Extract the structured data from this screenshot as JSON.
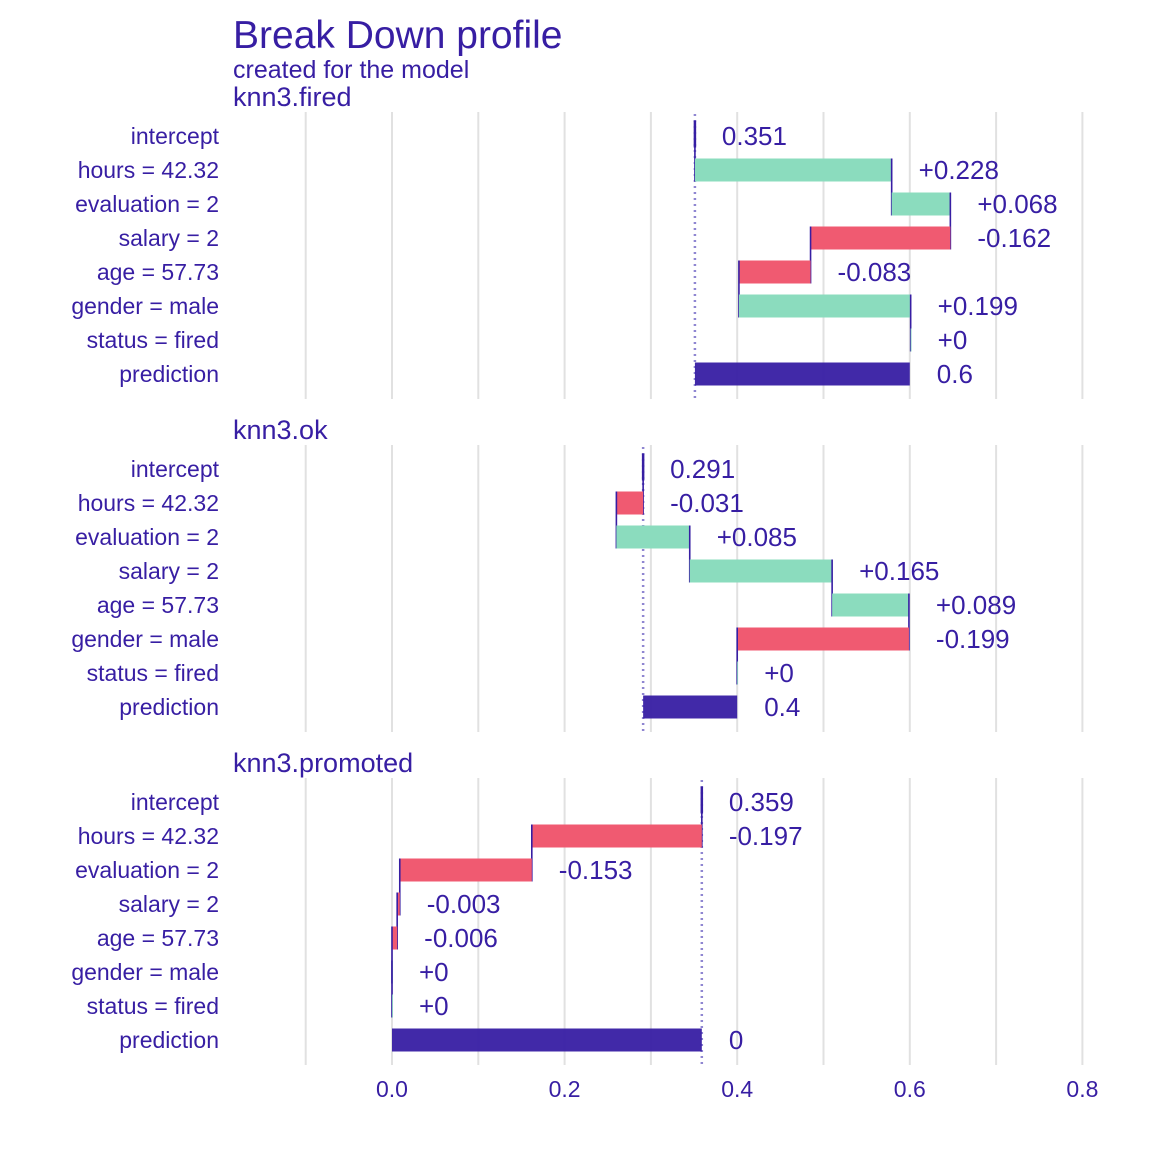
{
  "page": {
    "title": "Break Down profile",
    "subtitle": "created for the  model"
  },
  "colors": {
    "text": "#371ea3",
    "positive": "#8bdcbe",
    "negative": "#f05a71",
    "prediction": "#371ea3",
    "grid": "#e1e1e1",
    "baseline": "#8f86d1"
  },
  "chart_data": {
    "type": "bar",
    "subtype": "break-down-waterfall",
    "title": "Break Down profile",
    "subtitle": "created for the  model",
    "xlim": [
      -0.1,
      0.8
    ],
    "x_ticks": [
      0.0,
      0.2,
      0.4,
      0.6,
      0.8
    ],
    "x_tick_labels": [
      "0.0",
      "0.2",
      "0.4",
      "0.6",
      "0.8"
    ],
    "grid": true,
    "legend": "none",
    "panels": [
      {
        "label": "knn3.fired",
        "intercept": 0.351,
        "prediction": 0.6,
        "rows": [
          {
            "variable": "intercept",
            "contribution": 0.351,
            "label": "0.351",
            "kind": "intercept"
          },
          {
            "variable": "hours = 42.32",
            "contribution": 0.228,
            "label": "+0.228",
            "kind": "positive"
          },
          {
            "variable": "evaluation = 2",
            "contribution": 0.068,
            "label": "+0.068",
            "kind": "positive"
          },
          {
            "variable": "salary = 2",
            "contribution": -0.162,
            "label": "-0.162",
            "kind": "negative"
          },
          {
            "variable": "age = 57.73",
            "contribution": -0.083,
            "label": "-0.083",
            "kind": "negative"
          },
          {
            "variable": "gender = male",
            "contribution": 0.199,
            "label": "+0.199",
            "kind": "positive"
          },
          {
            "variable": "status = fired",
            "contribution": 0.0,
            "label": "+0",
            "kind": "positive"
          },
          {
            "variable": "prediction",
            "contribution": 0.6,
            "label": "0.6",
            "kind": "prediction"
          }
        ]
      },
      {
        "label": "knn3.ok",
        "intercept": 0.291,
        "prediction": 0.4,
        "rows": [
          {
            "variable": "intercept",
            "contribution": 0.291,
            "label": "0.291",
            "kind": "intercept"
          },
          {
            "variable": "hours = 42.32",
            "contribution": -0.031,
            "label": "-0.031",
            "kind": "negative"
          },
          {
            "variable": "evaluation = 2",
            "contribution": 0.085,
            "label": "+0.085",
            "kind": "positive"
          },
          {
            "variable": "salary = 2",
            "contribution": 0.165,
            "label": "+0.165",
            "kind": "positive"
          },
          {
            "variable": "age = 57.73",
            "contribution": 0.089,
            "label": "+0.089",
            "kind": "positive"
          },
          {
            "variable": "gender = male",
            "contribution": -0.199,
            "label": "-0.199",
            "kind": "negative"
          },
          {
            "variable": "status = fired",
            "contribution": 0.0,
            "label": "+0",
            "kind": "positive"
          },
          {
            "variable": "prediction",
            "contribution": 0.4,
            "label": "0.4",
            "kind": "prediction"
          }
        ]
      },
      {
        "label": "knn3.promoted",
        "intercept": 0.359,
        "prediction": 0.0,
        "rows": [
          {
            "variable": "intercept",
            "contribution": 0.359,
            "label": "0.359",
            "kind": "intercept"
          },
          {
            "variable": "hours = 42.32",
            "contribution": -0.197,
            "label": "-0.197",
            "kind": "negative"
          },
          {
            "variable": "evaluation = 2",
            "contribution": -0.153,
            "label": "-0.153",
            "kind": "negative"
          },
          {
            "variable": "salary = 2",
            "contribution": -0.003,
            "label": "-0.003",
            "kind": "negative"
          },
          {
            "variable": "age = 57.73",
            "contribution": -0.006,
            "label": "-0.006",
            "kind": "negative"
          },
          {
            "variable": "gender = male",
            "contribution": 0.0,
            "label": "+0",
            "kind": "positive"
          },
          {
            "variable": "status = fired",
            "contribution": 0.0,
            "label": "+0",
            "kind": "positive"
          },
          {
            "variable": "prediction",
            "contribution": 0.0,
            "label": "0",
            "kind": "prediction"
          }
        ]
      }
    ]
  }
}
